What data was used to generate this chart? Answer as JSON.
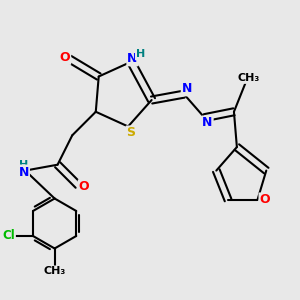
{
  "bg_color": "#e8e8e8",
  "atom_colors": {
    "C": "#000000",
    "N": "#0000ff",
    "O": "#ff0000",
    "S": "#ccaa00",
    "Cl": "#00bb00",
    "H": "#008080"
  },
  "bond_color": "#000000"
}
